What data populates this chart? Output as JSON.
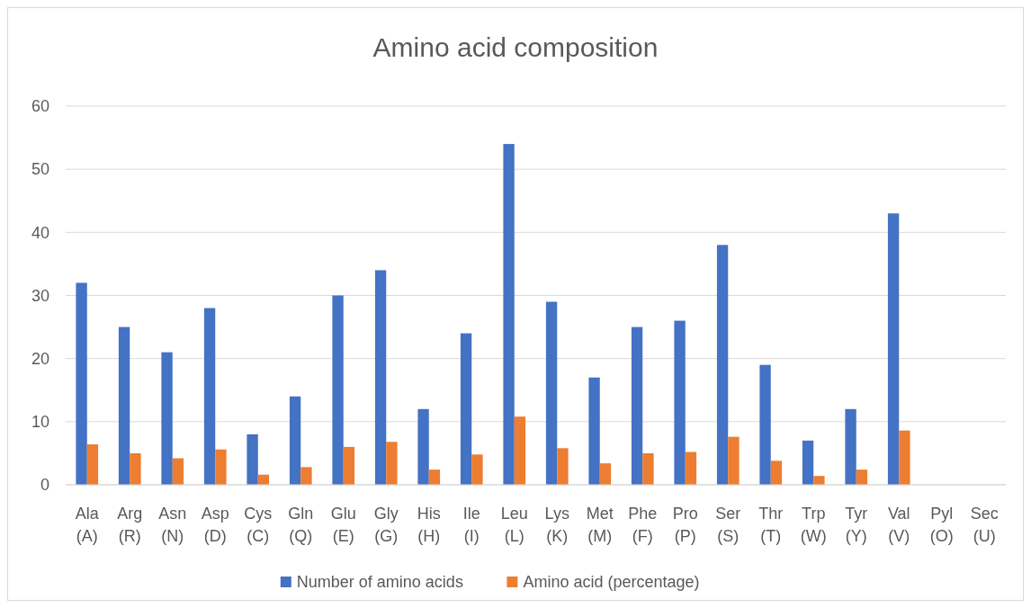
{
  "chart_data": {
    "type": "bar",
    "title": "Amino acid composition",
    "categories": [
      "Ala (A)",
      "Arg (R)",
      "Asn (N)",
      "Asp (D)",
      "Cys (C)",
      "Gln (Q)",
      "Glu (E)",
      "Gly (G)",
      "His (H)",
      "Ile (I)",
      "Leu (L)",
      "Lys (K)",
      "Met (M)",
      "Phe (F)",
      "Pro (P)",
      "Ser (S)",
      "Thr (T)",
      "Trp (W)",
      "Tyr (Y)",
      "Val (V)",
      "Pyl (O)",
      "Sec (U)"
    ],
    "series": [
      {
        "name": "Number of amino acids",
        "color": "#4472c4",
        "values": [
          32,
          25,
          21,
          28,
          8,
          14,
          30,
          34,
          12,
          24,
          54,
          29,
          17,
          25,
          26,
          38,
          19,
          7,
          12,
          43,
          0,
          0
        ]
      },
      {
        "name": "Amino acid (percentage)",
        "color": "#ed7d31",
        "values": [
          6.4,
          5.0,
          4.2,
          5.6,
          1.6,
          2.8,
          6.0,
          6.8,
          2.4,
          4.8,
          10.8,
          5.8,
          3.4,
          5.0,
          5.2,
          7.6,
          3.8,
          1.4,
          2.4,
          8.6,
          0,
          0
        ]
      }
    ],
    "ylim": [
      0,
      60
    ],
    "yticks": [
      0,
      10,
      20,
      30,
      40,
      50,
      60
    ],
    "grid": "y",
    "legend": "bottom"
  }
}
